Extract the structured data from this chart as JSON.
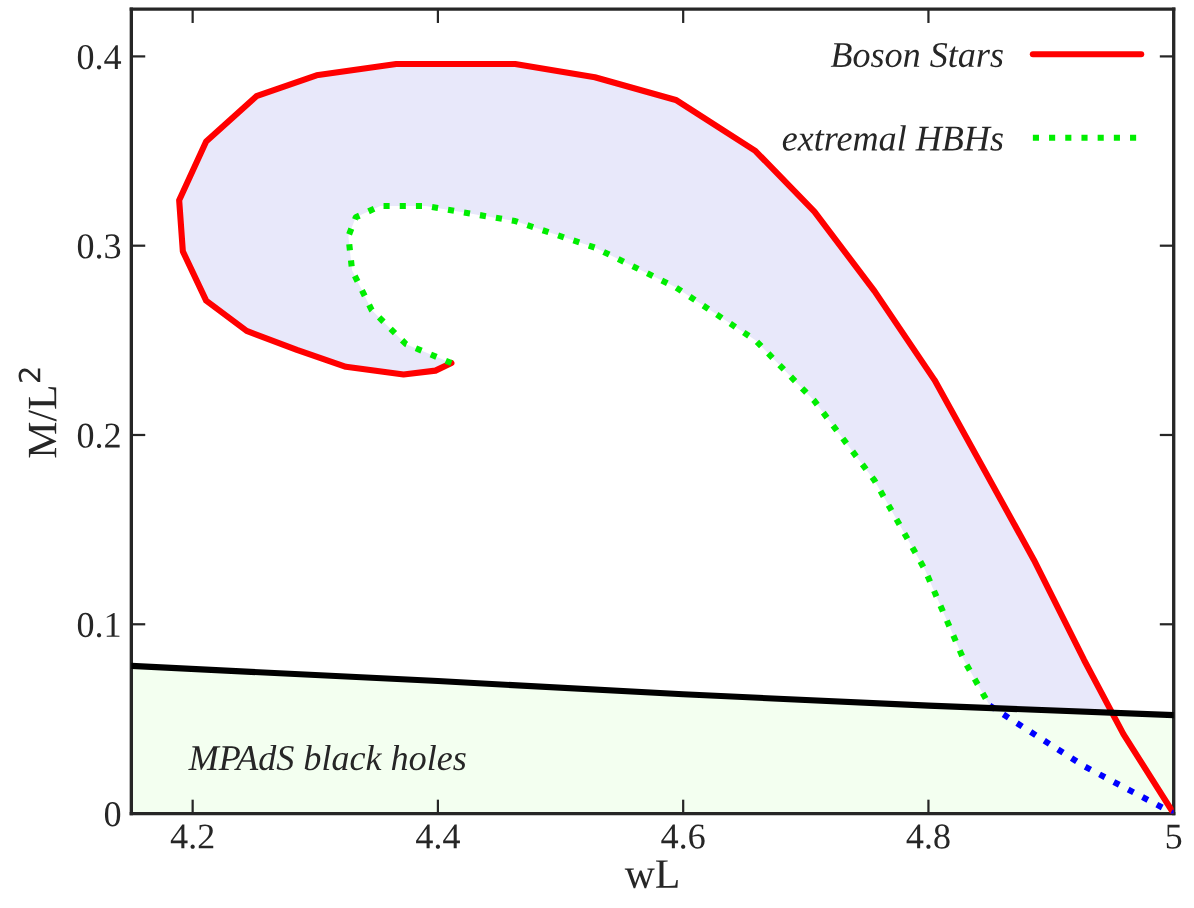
{
  "chart_data": {
    "type": "line",
    "xlabel": "wL",
    "ylabel": "M/L$^{2}$",
    "xlim": [
      4.15,
      5.0
    ],
    "ylim": [
      0,
      0.425
    ],
    "xticks": [
      4.2,
      4.4,
      4.6,
      4.8,
      {
        "value": 5.0,
        "label": "5"
      }
    ],
    "yticks": [
      {
        "value": 0,
        "label": "0"
      },
      0.1,
      0.2,
      0.3,
      0.4
    ],
    "grid": false,
    "legend": "top right",
    "marker": "none",
    "series": [
      {
        "name": "Boson Stars",
        "color": "#ff0000",
        "line_style": "solid",
        "x": [
          5.0,
          4.959,
          4.927,
          4.886,
          4.846,
          4.805,
          4.756,
          4.707,
          4.659,
          4.594,
          4.528,
          4.463,
          4.366,
          4.301,
          4.252,
          4.211,
          4.189,
          4.192,
          4.211,
          4.244,
          4.285,
          4.325,
          4.372,
          4.398,
          4.411
        ],
        "values": [
          0,
          0.042,
          0.081,
          0.134,
          0.181,
          0.229,
          0.276,
          0.318,
          0.35,
          0.377,
          0.389,
          0.396,
          0.396,
          0.39,
          0.379,
          0.355,
          0.324,
          0.297,
          0.271,
          0.255,
          0.245,
          0.236,
          0.232,
          0.234,
          0.238
        ]
      },
      {
        "name": "extremal HBHs",
        "color": "#00ee00",
        "line_style": "dotted",
        "x": [
          4.411,
          4.374,
          4.346,
          4.33,
          4.327,
          4.333,
          4.353,
          4.39,
          4.463,
          4.528,
          4.594,
          4.659,
          4.707,
          4.756,
          4.797,
          4.829,
          4.85
        ],
        "values": [
          0.238,
          0.248,
          0.266,
          0.287,
          0.305,
          0.315,
          0.321,
          0.321,
          0.313,
          0.299,
          0.278,
          0.25,
          0.218,
          0.176,
          0.129,
          0.081,
          0.057
        ]
      },
      {
        "color": "#0000ff",
        "line_style": "dotted",
        "x": [
          4.85,
          4.927,
          5.0
        ],
        "values": [
          0.057,
          0.025,
          0
        ]
      },
      {
        "type": "area",
        "color": "#000000",
        "line_style": "solid",
        "x": [
          4.15,
          4.4,
          4.6,
          4.8,
          5.0
        ],
        "values": [
          0.078,
          0.07,
          0.063,
          0.057,
          0.052
        ]
      }
    ],
    "annotations": [
      "MPAdS black holes"
    ]
  }
}
